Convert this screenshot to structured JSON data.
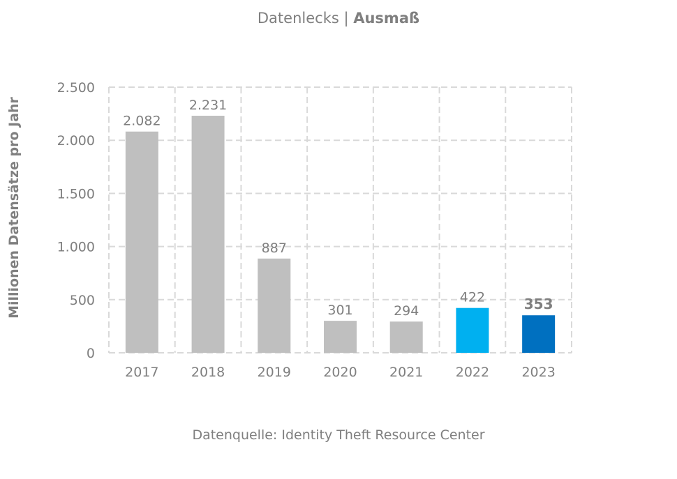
{
  "title": {
    "main": "Datenlecks",
    "separator": " | ",
    "bold": "Ausmaß"
  },
  "source": "Datenquelle: Identity Theft Resource Center",
  "chart_data": {
    "type": "bar",
    "title": "Datenlecks | Ausmaß",
    "xlabel": "",
    "ylabel": "Millionen Datensätze pro Jahr",
    "categories": [
      "2017",
      "2018",
      "2019",
      "2020",
      "2021",
      "2022",
      "2023"
    ],
    "values": [
      2082,
      2231,
      887,
      301,
      294,
      422,
      353
    ],
    "value_labels": [
      "2.082",
      "2.231",
      "887",
      "301",
      "294",
      "422",
      "353"
    ],
    "bar_colors": [
      "#bfbfbf",
      "#bfbfbf",
      "#bfbfbf",
      "#bfbfbf",
      "#bfbfbf",
      "#00b0f0",
      "#0070c0"
    ],
    "bold_labels": [
      false,
      false,
      false,
      false,
      false,
      false,
      true
    ],
    "ylim": [
      0,
      2500
    ],
    "yticks": [
      0,
      500,
      1000,
      1500,
      2000,
      2500
    ],
    "ytick_labels": [
      "0",
      "500",
      "1.000",
      "1.500",
      "2.000",
      "2.500"
    ],
    "grid": true,
    "grid_style": "dashed",
    "legend": "none"
  }
}
